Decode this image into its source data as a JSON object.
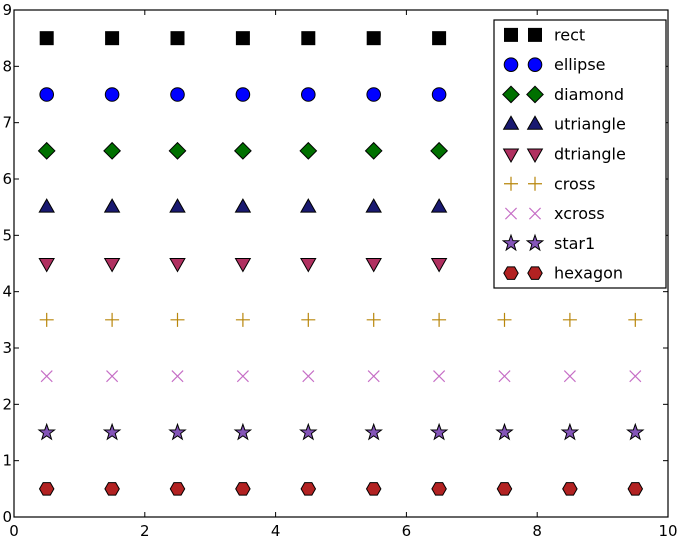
{
  "figure": {
    "background": "#ffffff",
    "axes": {
      "xlim": [
        0,
        10
      ],
      "ylim": [
        0,
        9
      ],
      "xticks": [
        0,
        2,
        4,
        6,
        8,
        10
      ],
      "yticks": [
        0,
        1,
        2,
        3,
        4,
        5,
        6,
        7,
        8,
        9
      ],
      "frame_color": "#000000",
      "tick_label_color": "#000000"
    },
    "legend": {
      "position": "upper-right",
      "background": "#ffffff",
      "border_color": "#000000",
      "markers_per_entry": 2
    }
  },
  "chart_data": {
    "type": "scatter",
    "title": "",
    "xlabel": "",
    "ylabel": "",
    "xlim": [
      0,
      10
    ],
    "ylim": [
      0,
      9
    ],
    "grid": false,
    "legend_position": "upper right",
    "x": [
      0.5,
      1.5,
      2.5,
      3.5,
      4.5,
      5.5,
      6.5,
      7.5,
      8.5,
      9.5
    ],
    "series": [
      {
        "name": "rect",
        "marker": "square",
        "color": "#000000",
        "edge": "#000000",
        "values": [
          8.5,
          8.5,
          8.5,
          8.5,
          8.5,
          8.5,
          8.5,
          8.5,
          8.5,
          8.5
        ]
      },
      {
        "name": "ellipse",
        "marker": "circle",
        "color": "#0000ff",
        "edge": "#000000",
        "values": [
          7.5,
          7.5,
          7.5,
          7.5,
          7.5,
          7.5,
          7.5,
          7.5,
          7.5,
          7.5
        ]
      },
      {
        "name": "diamond",
        "marker": "diamond",
        "color": "#007000",
        "edge": "#000000",
        "values": [
          6.5,
          6.5,
          6.5,
          6.5,
          6.5,
          6.5,
          6.5,
          6.5,
          6.5,
          6.5
        ]
      },
      {
        "name": "utriangle",
        "marker": "triangle-up",
        "color": "#191970",
        "edge": "#000000",
        "values": [
          5.5,
          5.5,
          5.5,
          5.5,
          5.5,
          5.5,
          5.5,
          5.5,
          5.5,
          5.5
        ]
      },
      {
        "name": "dtriangle",
        "marker": "triangle-down",
        "color": "#b03060",
        "edge": "#000000",
        "values": [
          4.5,
          4.5,
          4.5,
          4.5,
          4.5,
          4.5,
          4.5,
          4.5,
          4.5,
          4.5
        ]
      },
      {
        "name": "cross",
        "marker": "plus",
        "color": "#b8860b",
        "edge": "#b8860b",
        "values": [
          3.5,
          3.5,
          3.5,
          3.5,
          3.5,
          3.5,
          3.5,
          3.5,
          3.5,
          3.5
        ]
      },
      {
        "name": "xcross",
        "marker": "x",
        "color": "#c66fc6",
        "edge": "#c66fc6",
        "values": [
          2.5,
          2.5,
          2.5,
          2.5,
          2.5,
          2.5,
          2.5,
          2.5,
          2.5,
          2.5
        ]
      },
      {
        "name": "star1",
        "marker": "star",
        "color": "#8455b8",
        "edge": "#000000",
        "values": [
          1.5,
          1.5,
          1.5,
          1.5,
          1.5,
          1.5,
          1.5,
          1.5,
          1.5,
          1.5
        ]
      },
      {
        "name": "hexagon",
        "marker": "hexagon",
        "color": "#b22222",
        "edge": "#000000",
        "values": [
          0.5,
          0.5,
          0.5,
          0.5,
          0.5,
          0.5,
          0.5,
          0.5,
          0.5,
          0.5
        ]
      }
    ]
  }
}
